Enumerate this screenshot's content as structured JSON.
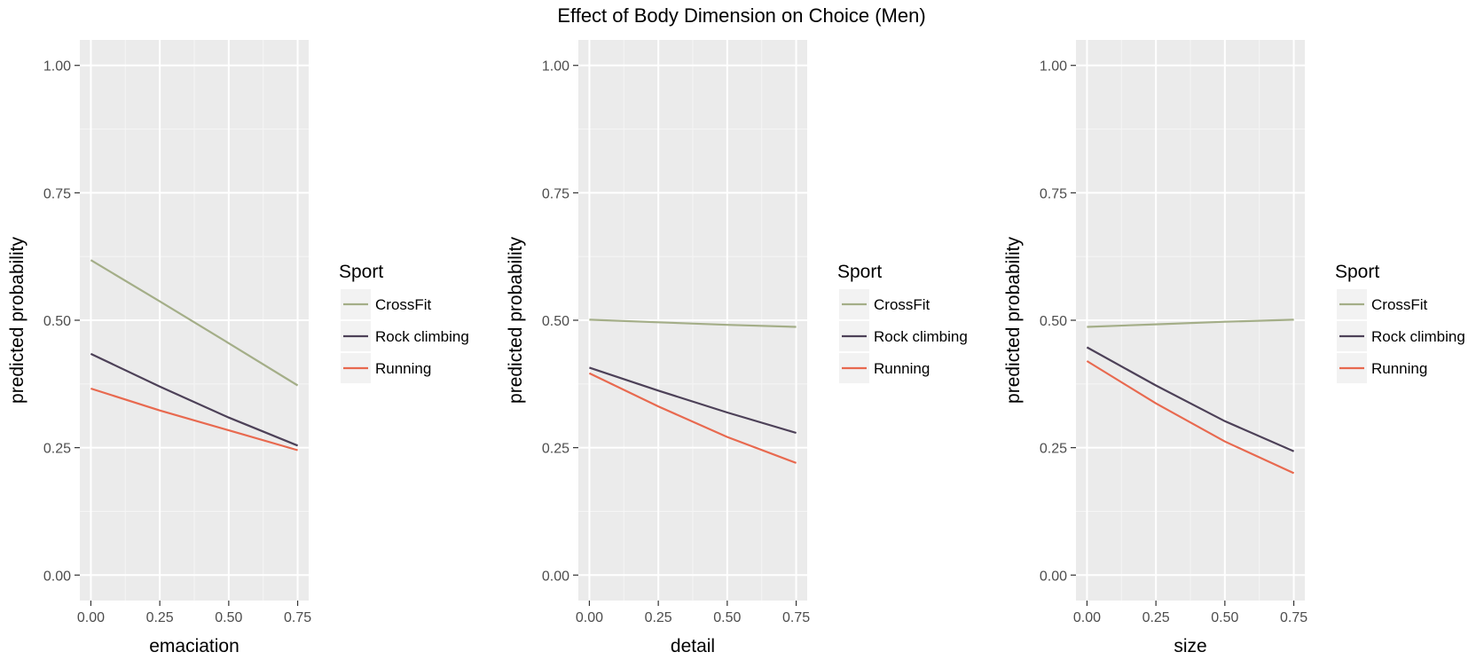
{
  "title": "Effect of Body Dimension on Choice (Men)",
  "colors": {
    "panel_background": "#ebebeb",
    "grid_major": "#ffffff",
    "grid_minor": "#f5f5f5",
    "legend_key_background": "#f2f2f2",
    "tick_mark": "#333333"
  },
  "chart_data": [
    {
      "type": "line",
      "title": "",
      "xlabel": "emaciation",
      "ylabel": "predicted probability",
      "xlim": [
        -0.04,
        0.79
      ],
      "ylim": [
        -0.05,
        1.05
      ],
      "xticks": [
        0.0,
        0.25,
        0.5,
        0.75
      ],
      "xtick_labels": [
        "0.00",
        "0.25",
        "0.50",
        "0.75"
      ],
      "yticks": [
        0.0,
        0.25,
        0.5,
        0.75,
        1.0
      ],
      "ytick_labels": [
        "0.00",
        "0.25",
        "0.50",
        "0.75",
        "1.00"
      ],
      "grid": true,
      "legend": {
        "title": "Sport",
        "position": "right"
      },
      "x": [
        0.0,
        0.25,
        0.5,
        0.75
      ],
      "series": [
        {
          "name": "CrossFit",
          "color": "#a4ae88",
          "values": [
            0.618,
            0.537,
            0.455,
            0.372
          ]
        },
        {
          "name": "Rock climbing",
          "color": "#4d4158",
          "values": [
            0.434,
            0.37,
            0.309,
            0.254
          ]
        },
        {
          "name": "Running",
          "color": "#e8694f",
          "values": [
            0.366,
            0.323,
            0.284,
            0.245
          ]
        }
      ]
    },
    {
      "type": "line",
      "title": "",
      "xlabel": "detail",
      "ylabel": "predicted probability",
      "xlim": [
        -0.04,
        0.79
      ],
      "ylim": [
        -0.05,
        1.05
      ],
      "xticks": [
        0.0,
        0.25,
        0.5,
        0.75
      ],
      "xtick_labels": [
        "0.00",
        "0.25",
        "0.50",
        "0.75"
      ],
      "yticks": [
        0.0,
        0.25,
        0.5,
        0.75,
        1.0
      ],
      "ytick_labels": [
        "0.00",
        "0.25",
        "0.50",
        "0.75",
        "1.00"
      ],
      "grid": true,
      "legend": {
        "title": "Sport",
        "position": "right"
      },
      "x": [
        0.0,
        0.25,
        0.5,
        0.75
      ],
      "series": [
        {
          "name": "CrossFit",
          "color": "#a4ae88",
          "values": [
            0.501,
            0.496,
            0.491,
            0.487
          ]
        },
        {
          "name": "Rock climbing",
          "color": "#4d4158",
          "values": [
            0.407,
            0.362,
            0.319,
            0.279
          ]
        },
        {
          "name": "Running",
          "color": "#e8694f",
          "values": [
            0.396,
            0.331,
            0.271,
            0.22
          ]
        }
      ]
    },
    {
      "type": "line",
      "title": "",
      "xlabel": "size",
      "ylabel": "predicted probability",
      "xlim": [
        -0.04,
        0.79
      ],
      "ylim": [
        -0.05,
        1.05
      ],
      "xticks": [
        0.0,
        0.25,
        0.5,
        0.75
      ],
      "xtick_labels": [
        "0.00",
        "0.25",
        "0.50",
        "0.75"
      ],
      "yticks": [
        0.0,
        0.25,
        0.5,
        0.75,
        1.0
      ],
      "ytick_labels": [
        "0.00",
        "0.25",
        "0.50",
        "0.75",
        "1.00"
      ],
      "grid": true,
      "legend": {
        "title": "Sport",
        "position": "right"
      },
      "x": [
        0.0,
        0.25,
        0.5,
        0.75
      ],
      "series": [
        {
          "name": "CrossFit",
          "color": "#a4ae88",
          "values": [
            0.487,
            0.492,
            0.497,
            0.501
          ]
        },
        {
          "name": "Rock climbing",
          "color": "#4d4158",
          "values": [
            0.447,
            0.372,
            0.302,
            0.243
          ]
        },
        {
          "name": "Running",
          "color": "#e8694f",
          "values": [
            0.42,
            0.337,
            0.262,
            0.2
          ]
        }
      ]
    }
  ]
}
